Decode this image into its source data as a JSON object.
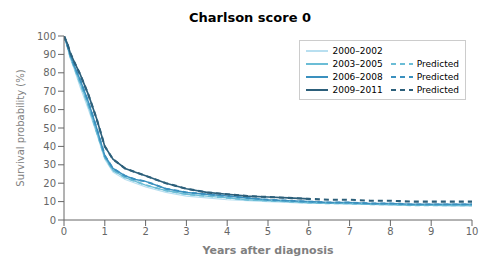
{
  "chart_data": {
    "type": "line",
    "title": "Charlson score 0",
    "xlabel": "Years after diagnosis",
    "ylabel": "Survival probability (%)",
    "xlim": [
      0,
      10
    ],
    "ylim": [
      0,
      100
    ],
    "xticks": [
      0,
      1,
      2,
      3,
      4,
      5,
      6,
      7,
      8,
      9,
      10
    ],
    "yticks": [
      0,
      10,
      20,
      30,
      40,
      50,
      60,
      70,
      80,
      90,
      100
    ],
    "grid": false,
    "legend": "upper right",
    "series": [
      {
        "name": "2000–2002",
        "color": "#b8dff0",
        "line_style": "solid",
        "x": [
          0,
          0.08,
          0.15,
          0.25,
          0.4,
          0.6,
          0.8,
          1.0,
          1.2,
          1.5,
          1.75,
          2.0,
          2.5,
          3.0,
          3.5,
          4.0,
          4.5,
          5.0,
          5.5,
          6.0,
          6.5,
          7.0,
          7.5,
          8.0,
          8.5,
          9.0,
          9.5,
          10.0
        ],
        "values": [
          100,
          94,
          88,
          82,
          72,
          60,
          47,
          33,
          26,
          22,
          20,
          18,
          15,
          13,
          12,
          11,
          10.5,
          10,
          9.5,
          9,
          9,
          8.5,
          8.5,
          8,
          8,
          8,
          7.5,
          7.5
        ]
      },
      {
        "name": "2003–2005",
        "color": "#6bbdd6",
        "line_style": "solid",
        "x": [
          0,
          0.08,
          0.15,
          0.25,
          0.4,
          0.6,
          0.8,
          1.0,
          1.2,
          1.5,
          1.75,
          2.0,
          2.5,
          3.0,
          3.5,
          4.0,
          4.5,
          5.0,
          5.5,
          6.0,
          6.5,
          7.0,
          7.5,
          8.0,
          8.5,
          9.0,
          9.5,
          10.0
        ],
        "values": [
          100,
          95,
          89,
          83,
          74,
          62,
          48,
          34,
          27,
          23,
          21,
          19,
          16,
          14,
          13,
          12,
          11,
          10.5,
          10,
          9.5,
          9,
          9,
          8.5,
          8.5,
          8,
          8,
          8,
          8
        ]
      },
      {
        "name": "2006–2008",
        "color": "#3a90be",
        "line_style": "solid",
        "x": [
          0,
          0.08,
          0.15,
          0.25,
          0.4,
          0.6,
          0.8,
          1.0,
          1.2,
          1.5,
          1.75,
          2.0,
          2.5,
          3.0,
          3.5,
          4.0,
          4.5,
          5.0,
          5.5,
          6.0,
          6.5,
          7.0,
          7.5,
          8.0,
          8.5,
          9.0,
          9.5,
          10.0
        ],
        "values": [
          100,
          95,
          90,
          84,
          76,
          64,
          50,
          35,
          28,
          24,
          22,
          21,
          17,
          15,
          14,
          13,
          12,
          11,
          10.5,
          10,
          9.5,
          9.5,
          9,
          9,
          8.5,
          8.5,
          8.5,
          8.5
        ]
      },
      {
        "name": "2009–2011",
        "color": "#2c5f7a",
        "line_style": "solid",
        "x": [
          0,
          0.08,
          0.15,
          0.25,
          0.4,
          0.6,
          0.8,
          1.0,
          1.2,
          1.5,
          1.75,
          2.0,
          2.5,
          3.0,
          3.5,
          4.0,
          4.5,
          5.0,
          5.5,
          6.0
        ],
        "values": [
          100,
          96,
          91,
          86,
          79,
          68,
          55,
          40,
          33,
          28,
          26,
          24,
          20,
          17,
          15,
          14,
          13,
          12.5,
          12,
          11.5
        ]
      },
      {
        "name": "Predicted",
        "color": "#6bbdd6",
        "line_style": "dashed",
        "x": [
          0,
          0.08,
          0.15,
          0.25,
          0.4,
          0.6,
          0.8,
          1.0,
          1.2,
          1.5,
          1.75,
          2.0,
          2.5,
          3.0,
          3.5,
          4.0,
          4.5,
          5.0,
          5.5,
          6.0,
          6.5,
          7.0,
          7.5,
          8.0,
          8.5,
          9.0,
          9.5,
          10.0
        ],
        "values": [
          100,
          95,
          89,
          83,
          74,
          62,
          48,
          34,
          27,
          23,
          21,
          19,
          16,
          14,
          13,
          12,
          11,
          10.5,
          10,
          9.5,
          9,
          9,
          8.5,
          8.5,
          8,
          8,
          8,
          8
        ]
      },
      {
        "name": "Predicted",
        "color": "#3a90be",
        "line_style": "dashed",
        "x": [
          0,
          0.08,
          0.15,
          0.25,
          0.4,
          0.6,
          0.8,
          1.0,
          1.2,
          1.5,
          1.75,
          2.0,
          2.5,
          3.0,
          3.5,
          4.0,
          4.5,
          5.0,
          5.5,
          6.0,
          6.5,
          7.0,
          7.5,
          8.0,
          8.5,
          9.0,
          9.5,
          10.0
        ],
        "values": [
          100,
          95,
          90,
          84,
          76,
          64,
          50,
          35,
          28,
          24,
          22,
          21,
          17,
          15,
          14,
          13,
          12,
          11,
          10.5,
          10,
          9.5,
          9.5,
          9,
          9,
          8.5,
          8.5,
          8.5,
          8.5
        ]
      },
      {
        "name": "Predicted",
        "color": "#2c5f7a",
        "line_style": "dashed",
        "x": [
          0,
          0.08,
          0.15,
          0.25,
          0.4,
          0.6,
          0.8,
          1.0,
          1.2,
          1.5,
          1.75,
          2.0,
          2.5,
          3.0,
          3.5,
          4.0,
          4.5,
          5.0,
          5.5,
          6.0,
          6.5,
          7.0,
          7.5,
          8.0,
          8.5,
          9.0,
          9.5,
          10.0
        ],
        "values": [
          100,
          96,
          91,
          86,
          79,
          68,
          55,
          40,
          33,
          28,
          26,
          24,
          20,
          17,
          15,
          14,
          13,
          12.5,
          12,
          11.5,
          11,
          11,
          10.5,
          10.5,
          10,
          10,
          10,
          10
        ]
      }
    ]
  }
}
